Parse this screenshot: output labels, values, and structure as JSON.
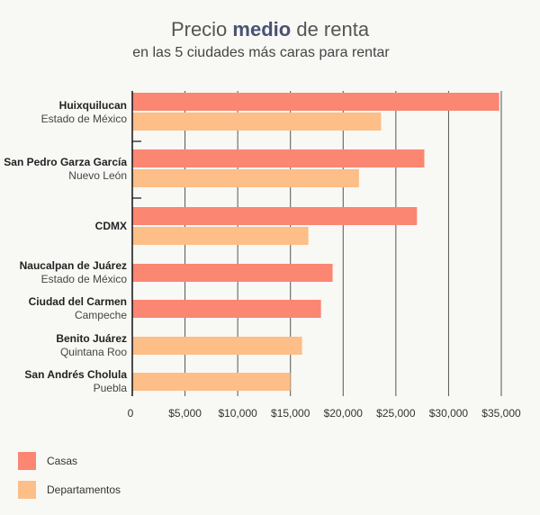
{
  "title": {
    "part1": "Precio ",
    "bold": "medio",
    "part2": " de renta"
  },
  "subtitle": "en las 5 ciudades más caras para rentar",
  "chart_data": {
    "type": "bar",
    "orientation": "horizontal",
    "categories": [
      {
        "name": "Huixquilucan",
        "region": "Estado de México",
        "casas": 34800,
        "departamentos": 23600
      },
      {
        "name": "San Pedro Garza García",
        "region": "Nuevo León",
        "casas": 27700,
        "departamentos": 21500
      },
      {
        "name": "CDMX",
        "region": "",
        "casas": 27000,
        "departamentos": 16700
      },
      {
        "name": "Naucalpan de Juárez",
        "region": "Estado de México",
        "casas": 19000,
        "departamentos": null
      },
      {
        "name": "Ciudad del Carmen",
        "region": "Campeche",
        "casas": 17900,
        "departamentos": null
      },
      {
        "name": "Benito Juárez",
        "region": "Quintana Roo",
        "casas": null,
        "departamentos": 16100
      },
      {
        "name": "San Andrés Cholula",
        "region": "Puebla",
        "casas": null,
        "departamentos": 15000
      }
    ],
    "series": [
      {
        "key": "casas",
        "name": "Casas",
        "color": "#fb8672"
      },
      {
        "key": "departamentos",
        "name": "Departamentos",
        "color": "#fdbe87"
      }
    ],
    "xlim": [
      0,
      35000
    ],
    "xticks": [
      0,
      5000,
      10000,
      15000,
      20000,
      25000,
      30000,
      35000
    ],
    "xtick_labels": [
      "0",
      "$5,000",
      "$10,000",
      "$15,000",
      "$20,000",
      "$25,000",
      "$30,000",
      "$35,000"
    ],
    "grid": true,
    "legend_position": "bottom-left"
  }
}
